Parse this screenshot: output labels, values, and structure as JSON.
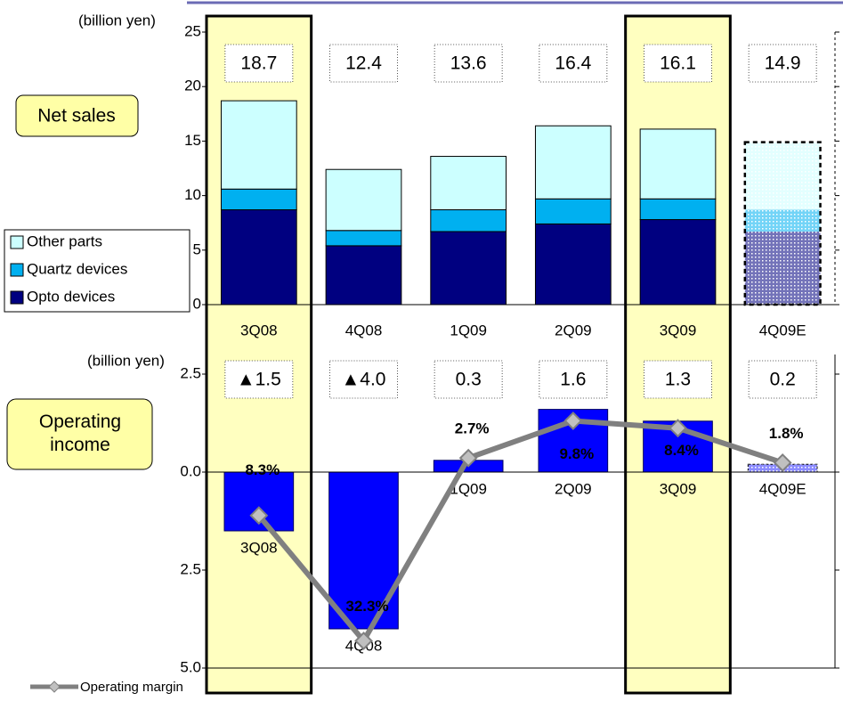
{
  "chart_data": [
    {
      "type": "stacked-bar",
      "y_label": "(billion yen)",
      "label": "Net sales",
      "categories": [
        "3Q08",
        "4Q08",
        "1Q09",
        "2Q09",
        "3Q09",
        "4Q09E"
      ],
      "series": [
        {
          "name": "Other parts",
          "color": "#ccffff",
          "values": [
            8.1,
            5.6,
            4.9,
            6.7,
            6.4,
            6.2
          ]
        },
        {
          "name": "Quartz devices",
          "color": "#00b0f0",
          "values": [
            1.9,
            1.4,
            2.0,
            2.3,
            1.9,
            2.0
          ]
        },
        {
          "name": "Opto devices",
          "color": "#000080",
          "values": [
            8.7,
            5.4,
            6.7,
            7.4,
            7.8,
            6.7
          ]
        }
      ],
      "totals": [
        18.7,
        12.4,
        13.6,
        16.4,
        16.1,
        14.9
      ],
      "ylim": [
        0,
        25
      ],
      "yticks": [
        0,
        5,
        10,
        15,
        20,
        25
      ],
      "highlight": [
        0,
        4
      ],
      "estimate": [
        false,
        false,
        false,
        false,
        false,
        true
      ]
    },
    {
      "type": "bar-line",
      "y_label": "(billion yen)",
      "label": "Operating income",
      "categories": [
        "3Q08",
        "4Q08",
        "1Q09",
        "2Q09",
        "3Q09",
        "4Q09E"
      ],
      "values": [
        -1.5,
        -4.0,
        0.3,
        1.6,
        1.3,
        0.2
      ],
      "value_labels": [
        "▲1.5",
        "▲4.0",
        "0.3",
        "1.6",
        "1.3",
        "0.2"
      ],
      "color": "#0000ff",
      "line": {
        "name": "Operating margin",
        "color": "#808080",
        "axis": "y2",
        "values": [
          -8.3,
          -32.3,
          2.7,
          9.8,
          8.4,
          1.8
        ],
        "value_labels": [
          "8.3%",
          "32.3%",
          "2.7%",
          "9.8%",
          "8.4%",
          "1.8%"
        ]
      },
      "ylim": [
        3,
        -5
      ],
      "yticks": [
        2.5,
        {
          "value": 0,
          "label": "0.0"
        },
        {
          "value": -2.5,
          "label": "2.5"
        },
        {
          "value": -5,
          "label": "5.0"
        }
      ],
      "y2lim": [
        22.5,
        -37.5
      ],
      "highlight": [
        0,
        4
      ],
      "estimate": [
        false,
        false,
        false,
        false,
        false,
        true
      ]
    }
  ]
}
